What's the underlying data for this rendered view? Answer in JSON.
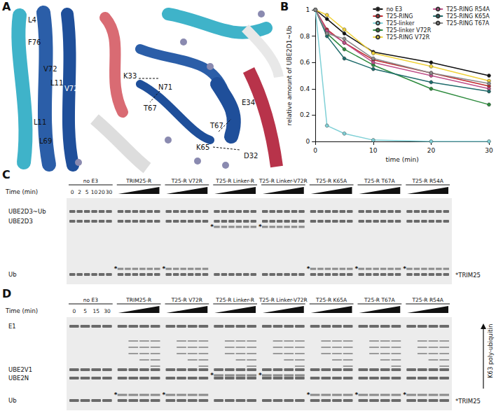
{
  "chart_data": {
    "type": "line",
    "xlabel": "time (min)",
    "ylabel": "relative amount of UBE2D1~Ub",
    "x": [
      0,
      2,
      5,
      10,
      20,
      30
    ],
    "series": [
      {
        "name": "no E3",
        "color": "#111111",
        "values": [
          1,
          0.93,
          0.82,
          0.68,
          0.6,
          0.5
        ]
      },
      {
        "name": "T25-RING",
        "color": "#c0282d",
        "values": [
          1,
          0.85,
          0.75,
          0.62,
          0.52,
          0.42
        ]
      },
      {
        "name": "T25-linker",
        "color": "#7fd0d6",
        "values": [
          1,
          0.12,
          0.06,
          0.01,
          0,
          0
        ]
      },
      {
        "name": "T25-linker V72R",
        "color": "#2e8b3e",
        "values": [
          1,
          0.82,
          0.7,
          0.58,
          0.4,
          0.28
        ]
      },
      {
        "name": "T25-RING V72R",
        "color": "#f0d23a",
        "values": [
          1,
          0.96,
          0.85,
          0.67,
          0.57,
          0.46
        ]
      },
      {
        "name": "T25-RING R54A",
        "color": "#c0508a",
        "values": [
          1,
          0.84,
          0.75,
          0.6,
          0.5,
          0.4
        ]
      },
      {
        "name": "T25-RING K65A",
        "color": "#1e6b6b",
        "values": [
          1,
          0.8,
          0.63,
          0.55,
          0.45,
          0.38
        ]
      },
      {
        "name": "T25-RING T67A",
        "color": "#8a8a8a",
        "values": [
          1,
          0.82,
          0.78,
          0.63,
          0.52,
          0.44
        ]
      }
    ],
    "xlim": [
      0,
      30
    ],
    "xticks": [
      0,
      10,
      20,
      30
    ],
    "ylim": [
      0,
      1
    ],
    "yticks": [
      0,
      0.2,
      0.4,
      0.6,
      0.8,
      1
    ],
    "grid": false,
    "legend": "upper right",
    "marker": "circle",
    "data_labels": false
  },
  "figure": {
    "panel_labels": [
      "A",
      "B",
      "C",
      "D"
    ],
    "structure": {
      "left_labels": [
        "L4",
        "F76",
        "V72",
        "L11",
        "V72",
        "L11",
        "L69"
      ],
      "right_labels": [
        "K33",
        "N71",
        "T67",
        "E34",
        "T67",
        "K65",
        "D32"
      ]
    },
    "gel_C": {
      "time_label": "Time (min)",
      "times": [
        0,
        2,
        5,
        10,
        20,
        30
      ],
      "lanes": [
        "no E3",
        "TRIM25-R",
        "T25-R V72R",
        "T25-R Linker-R",
        "T25-R Linker-V72R",
        "T25-R K65A",
        "T25-R T67A",
        "T25-R R54A"
      ],
      "bands": [
        "UBE2D3~Ub",
        "UBE2D3",
        "Ub"
      ],
      "band_mark": "*",
      "note": "*TRIM25"
    },
    "gel_D": {
      "time_label": "Time (min)",
      "times": [
        0,
        5,
        15,
        30
      ],
      "lanes": [
        "no E3",
        "TRIM25-R",
        "T25-R V72R",
        "T25-R Linker-R",
        "T25-R Linker-V72R",
        "T25-R K65A",
        "T25-R T67A",
        "T25-R R54A"
      ],
      "bands": [
        "E1",
        "UBE2V1",
        "UBE2N",
        "Ub"
      ],
      "band_mark": "*",
      "side_label": "K63 poly-ubiquitin",
      "note": "*TRIM25"
    }
  }
}
